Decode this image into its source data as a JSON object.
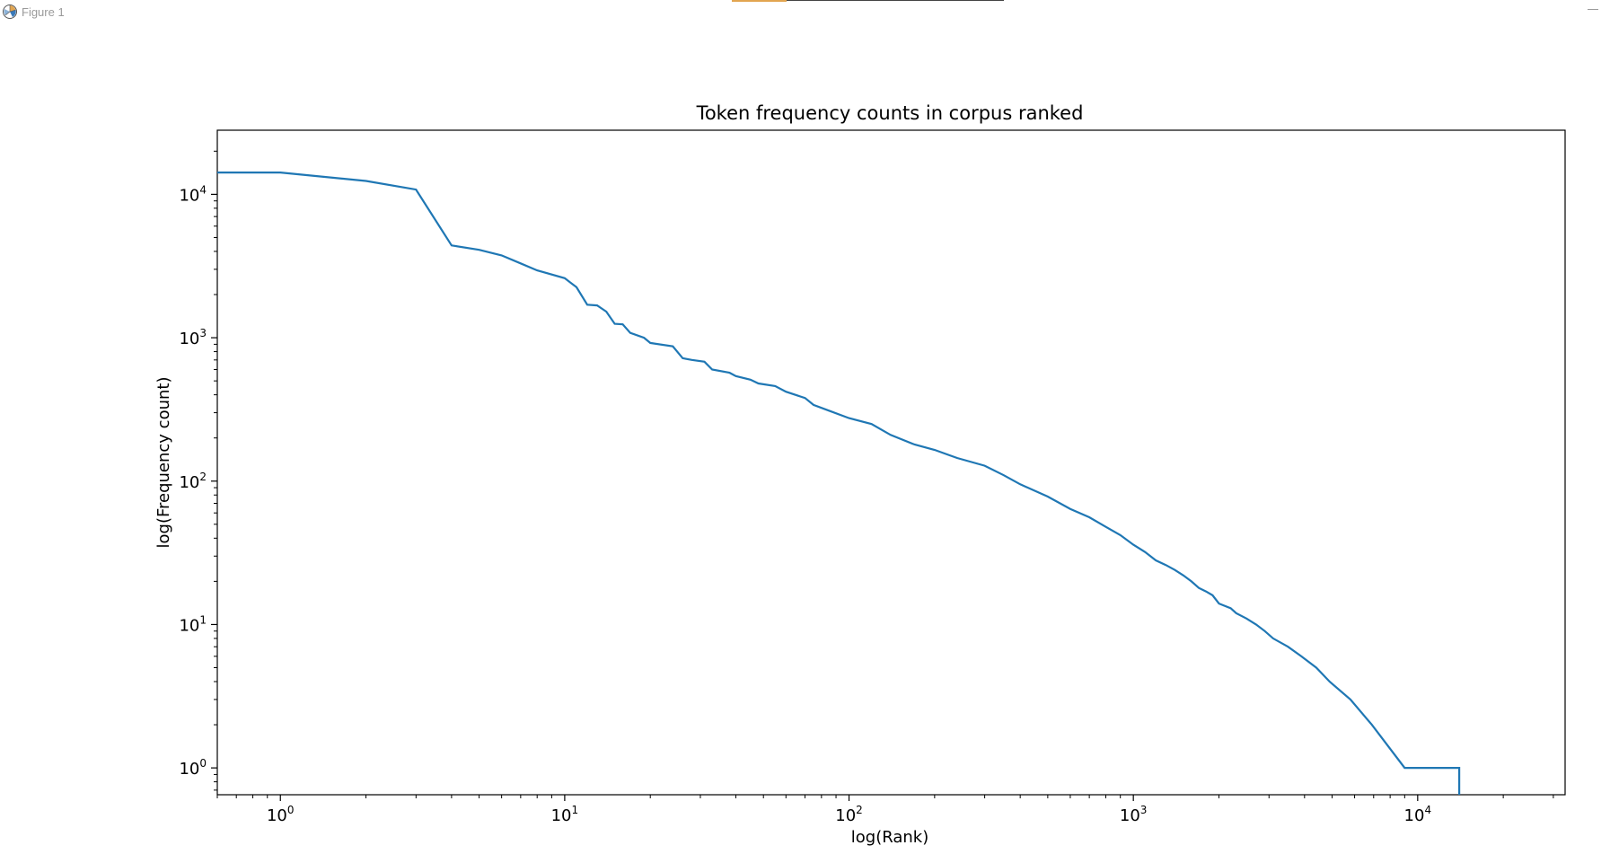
{
  "window": {
    "title": "Figure 1",
    "icon": "matplotlib-figure-icon"
  },
  "chart_data": {
    "type": "line",
    "title": "Token frequency counts in corpus ranked",
    "xlabel": "log(Rank)",
    "ylabel": "log(Frequency count)",
    "x_scale": "log",
    "y_scale": "log",
    "xlim": [
      0.6,
      33000
    ],
    "ylim": [
      0.65,
      28000
    ],
    "grid": false,
    "line_color": "#1f77b4",
    "x_ticks": [
      {
        "value": 1,
        "base": "10",
        "exp": "0"
      },
      {
        "value": 10,
        "base": "10",
        "exp": "1"
      },
      {
        "value": 100,
        "base": "10",
        "exp": "2"
      },
      {
        "value": 1000,
        "base": "10",
        "exp": "3"
      },
      {
        "value": 10000,
        "base": "10",
        "exp": "4"
      }
    ],
    "y_ticks": [
      {
        "value": 1,
        "base": "10",
        "exp": "0"
      },
      {
        "value": 10,
        "base": "10",
        "exp": "1"
      },
      {
        "value": 100,
        "base": "10",
        "exp": "2"
      },
      {
        "value": 1000,
        "base": "10",
        "exp": "3"
      },
      {
        "value": 10000,
        "base": "10",
        "exp": "4"
      }
    ],
    "series": [
      {
        "points": [
          [
            0.6,
            14200
          ],
          [
            1,
            14200
          ],
          [
            2,
            12400
          ],
          [
            3,
            10800
          ],
          [
            4,
            4400
          ],
          [
            5,
            4100
          ],
          [
            6,
            3750
          ],
          [
            7,
            3300
          ],
          [
            8,
            2950
          ],
          [
            10,
            2600
          ],
          [
            11,
            2250
          ],
          [
            12,
            1700
          ],
          [
            13,
            1680
          ],
          [
            14,
            1520
          ],
          [
            15,
            1250
          ],
          [
            16,
            1240
          ],
          [
            17,
            1080
          ],
          [
            19,
            1000
          ],
          [
            20,
            920
          ],
          [
            24,
            870
          ],
          [
            26,
            720
          ],
          [
            28,
            700
          ],
          [
            31,
            680
          ],
          [
            33,
            600
          ],
          [
            38,
            570
          ],
          [
            40,
            540
          ],
          [
            45,
            510
          ],
          [
            48,
            480
          ],
          [
            55,
            460
          ],
          [
            60,
            420
          ],
          [
            70,
            380
          ],
          [
            75,
            340
          ],
          [
            85,
            310
          ],
          [
            100,
            275
          ],
          [
            120,
            250
          ],
          [
            140,
            210
          ],
          [
            170,
            180
          ],
          [
            200,
            165
          ],
          [
            240,
            145
          ],
          [
            300,
            128
          ],
          [
            350,
            110
          ],
          [
            400,
            95
          ],
          [
            500,
            78
          ],
          [
            600,
            64
          ],
          [
            700,
            56
          ],
          [
            800,
            48
          ],
          [
            900,
            42
          ],
          [
            1000,
            36
          ],
          [
            1100,
            32
          ],
          [
            1200,
            28
          ],
          [
            1300,
            26
          ],
          [
            1400,
            24
          ],
          [
            1500,
            22
          ],
          [
            1600,
            20
          ],
          [
            1700,
            18
          ],
          [
            1800,
            17
          ],
          [
            1900,
            16
          ],
          [
            2000,
            14
          ],
          [
            2200,
            13
          ],
          [
            2300,
            12
          ],
          [
            2500,
            11
          ],
          [
            2700,
            10
          ],
          [
            2900,
            9
          ],
          [
            3100,
            8
          ],
          [
            3500,
            7
          ],
          [
            3900,
            6
          ],
          [
            4400,
            5
          ],
          [
            4900,
            4
          ],
          [
            5800,
            3
          ],
          [
            6900,
            2
          ],
          [
            9000,
            1
          ],
          [
            14000,
            1
          ],
          [
            14000,
            0.65
          ]
        ]
      }
    ]
  }
}
